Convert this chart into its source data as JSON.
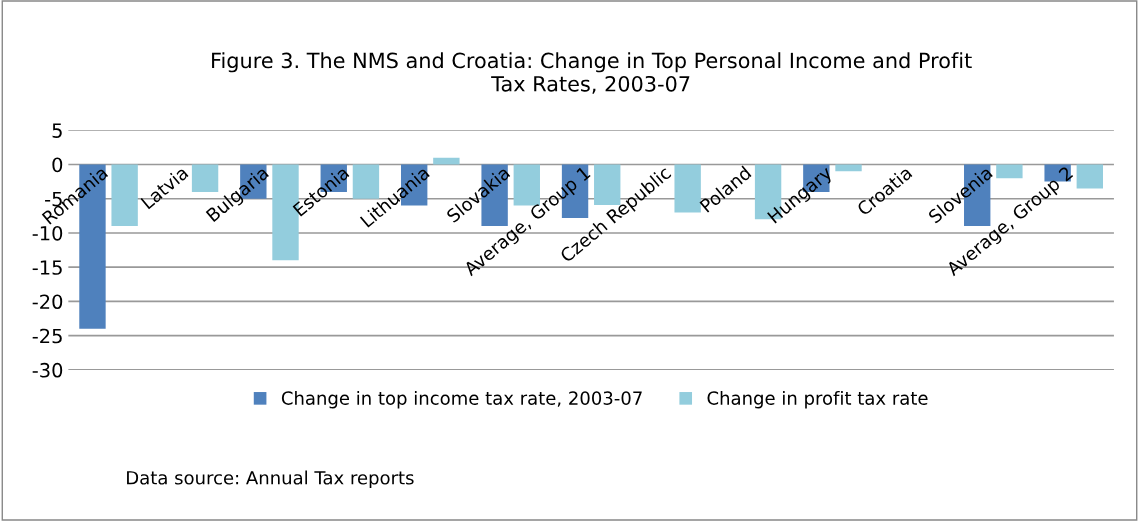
{
  "chart_data": {
    "type": "bar",
    "title": "Figure 3. The NMS and Croatia: Change in Top Personal Income and Profit\nTax Rates, 2003-07",
    "categories": [
      "Romania",
      "Latvia",
      "Bulgaria",
      "Estonia",
      "Lithuania",
      "Slovakia",
      "Average, Group 1",
      "Czech Republic",
      "Poland",
      "Hungary",
      "Croatia",
      "Slovenia",
      "Average, Group 2"
    ],
    "series": [
      {
        "name": "Change in top income tax rate, 2003-07",
        "color": "#4f81bd",
        "values": [
          -24,
          0,
          -5,
          -4,
          -6,
          -9,
          -7.8,
          0,
          0,
          -4,
          0,
          -9,
          -2.5
        ]
      },
      {
        "name": "Change in profit tax rate",
        "color": "#93cddd",
        "values": [
          -9,
          -4,
          -14,
          -5,
          1,
          -6,
          -5.9,
          -7,
          -8,
          -1,
          0,
          -2,
          -3.5
        ]
      }
    ],
    "ylim": [
      -30,
      5
    ],
    "yticks": [
      -30,
      -25,
      -20,
      -15,
      -10,
      -5,
      0,
      5
    ],
    "grid": "y",
    "legend": "bottom",
    "annotations": [
      "Data source: Annual Tax reports"
    ]
  }
}
